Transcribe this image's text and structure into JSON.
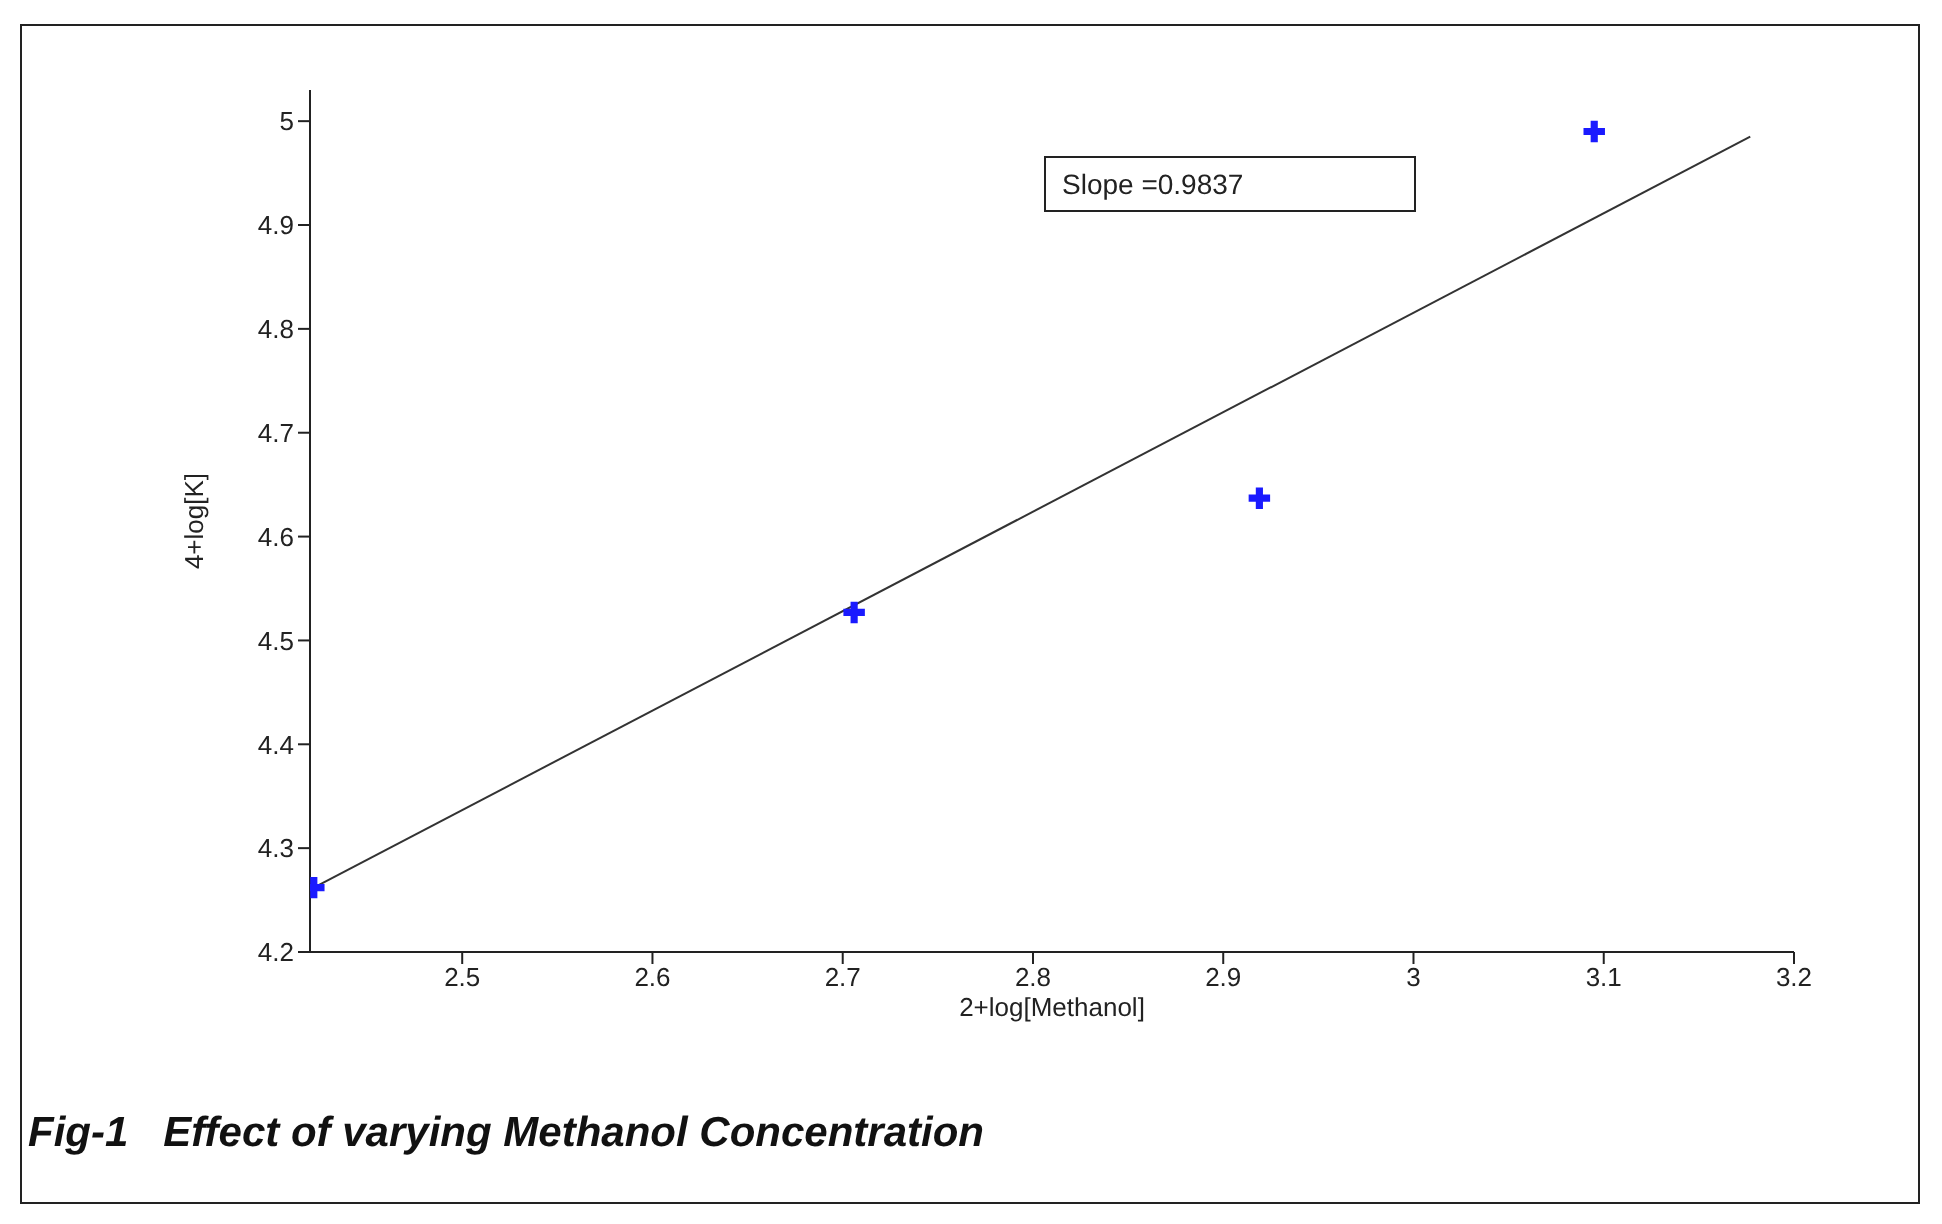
{
  "chart_data": {
    "type": "scatter",
    "title": "Fig-1   Effect of varying Methanol Concentration",
    "xlabel": "2+log[Methanol]",
    "ylabel": "4+log[K]",
    "annotations": [
      "Slope =0.9837"
    ],
    "xlim": [
      2.42,
      3.2
    ],
    "xticks": [
      2.5,
      2.6,
      2.7,
      2.8,
      2.9,
      3,
      3.1,
      3.2
    ],
    "ylim": [
      4.2,
      5.03
    ],
    "yticks": [
      4.2,
      4.3,
      4.4,
      4.5,
      4.6,
      4.7,
      4.8,
      4.9,
      5
    ],
    "grid": false,
    "legend": false,
    "marker": "cross",
    "series": [
      {
        "color": "#1a1aff",
        "x": [
          2.422,
          2.706,
          2.919,
          3.095
        ],
        "values": [
          4.262,
          4.527,
          4.637,
          4.99
        ]
      },
      {
        "type": "line",
        "color": "#333333",
        "x": [
          2.422,
          3.177
        ],
        "values": [
          4.262,
          4.985
        ],
        "line_style": "solid",
        "marker": "none"
      }
    ]
  }
}
